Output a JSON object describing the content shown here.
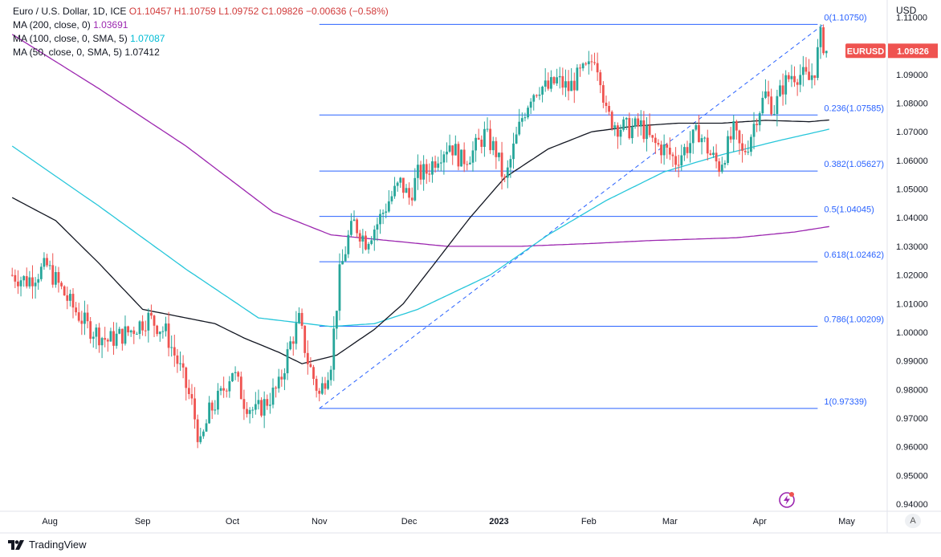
{
  "header": {
    "symbol": "Euro / U.S. Dollar, 1D, ICE",
    "ohlc_open": "O1.10457",
    "ohlc_high": "H1.10759",
    "ohlc_low": "L1.09752",
    "ohlc_close": "C1.09826",
    "change": "−0.00636 (−0.58%)",
    "ma200_label": "MA (200, close, 0)",
    "ma200_value": "1.03691",
    "ma100_label": "MA (100, close, 0, SMA, 5)",
    "ma100_value": "1.07087",
    "ma50_label": "MA (50, close, 0, SMA, 5)",
    "ma50_value": "1.07412",
    "currency": "USD"
  },
  "footer": {
    "brand": "TradingView",
    "auto_label": "A"
  },
  "colors": {
    "up": "#26a69a",
    "down": "#ef5350",
    "fib": "#2962ff",
    "ma200": "#9c27b0",
    "ma100": "#26c6da",
    "ma50": "#131722",
    "price_tag": "#ef5350"
  },
  "chart_data": {
    "type": "candlestick",
    "title": "Euro / U.S. Dollar, 1D, ICE",
    "ylabel": "USD",
    "ylim": [
      0.9375,
      1.116
    ],
    "y_ticks": [
      "1.11000",
      "1.09000",
      "1.08000",
      "1.07000",
      "1.06000",
      "1.05000",
      "1.04000",
      "1.03000",
      "1.02000",
      "1.01000",
      "1.00000",
      "0.99000",
      "0.98000",
      "0.97000",
      "0.96000",
      "0.95000",
      "0.94000"
    ],
    "x_labels": [
      "Aug",
      "Sep",
      "Oct",
      "Nov",
      "Dec",
      "2023",
      "Feb",
      "Mar",
      "Apr",
      "May"
    ],
    "x_label_days": [
      13,
      45,
      76,
      106,
      137,
      168,
      199,
      227,
      258,
      288
    ],
    "last_price": {
      "label": "EURUSD",
      "value": "1.09826",
      "price": 1.09826
    },
    "fib_retracement": {
      "start_day": 106,
      "end_day": 278,
      "levels": [
        {
          "label": "0(1.10750)",
          "price": 1.1075
        },
        {
          "label": "0.236(1.07585)",
          "price": 1.07585
        },
        {
          "label": "0.382(1.05627)",
          "price": 1.05627
        },
        {
          "label": "0.5(1.04045)",
          "price": 1.04045
        },
        {
          "label": "0.618(1.02462)",
          "price": 1.02462
        },
        {
          "label": "0.786(1.00209)",
          "price": 1.00209
        },
        {
          "label": "1(0.97339)",
          "price": 0.97339
        }
      ],
      "trendline": {
        "from_day": 106,
        "from_price": 0.97339,
        "to_day": 280,
        "to_price": 1.1075
      }
    },
    "anchors": [
      [
        0,
        1.02
      ],
      [
        5,
        1.018
      ],
      [
        12,
        1.023
      ],
      [
        20,
        1.01
      ],
      [
        26,
        1.002
      ],
      [
        33,
        0.997
      ],
      [
        40,
        1.0
      ],
      [
        47,
        1.005
      ],
      [
        53,
        1.0
      ],
      [
        58,
        0.987
      ],
      [
        62,
        0.975
      ],
      [
        65,
        0.96
      ],
      [
        68,
        0.972
      ],
      [
        72,
        0.978
      ],
      [
        76,
        0.987
      ],
      [
        80,
        0.976
      ],
      [
        84,
        0.972
      ],
      [
        88,
        0.976
      ],
      [
        92,
        0.981
      ],
      [
        96,
        0.996
      ],
      [
        99,
        1.004
      ],
      [
        102,
        0.99
      ],
      [
        106,
        0.978
      ],
      [
        110,
        0.99
      ],
      [
        113,
        1.02
      ],
      [
        116,
        1.033
      ],
      [
        118,
        1.038
      ],
      [
        122,
        1.032
      ],
      [
        126,
        1.038
      ],
      [
        130,
        1.046
      ],
      [
        134,
        1.052
      ],
      [
        137,
        1.047
      ],
      [
        140,
        1.055
      ],
      [
        143,
        1.056
      ],
      [
        147,
        1.062
      ],
      [
        151,
        1.066
      ],
      [
        155,
        1.06
      ],
      [
        159,
        1.063
      ],
      [
        163,
        1.069
      ],
      [
        167,
        1.063
      ],
      [
        170,
        1.052
      ],
      [
        173,
        1.064
      ],
      [
        176,
        1.075
      ],
      [
        179,
        1.083
      ],
      [
        182,
        1.086
      ],
      [
        185,
        1.085
      ],
      [
        188,
        1.088
      ],
      [
        192,
        1.085
      ],
      [
        196,
        1.09
      ],
      [
        199,
        1.092
      ],
      [
        201,
        1.097
      ],
      [
        203,
        1.09
      ],
      [
        205,
        1.076
      ],
      [
        209,
        1.072
      ],
      [
        213,
        1.071
      ],
      [
        217,
        1.072
      ],
      [
        221,
        1.066
      ],
      [
        225,
        1.064
      ],
      [
        229,
        1.06
      ],
      [
        233,
        1.065
      ],
      [
        237,
        1.07
      ],
      [
        241,
        1.062
      ],
      [
        244,
        1.058
      ],
      [
        247,
        1.065
      ],
      [
        249,
        1.07
      ],
      [
        252,
        1.062
      ],
      [
        254,
        1.066
      ],
      [
        257,
        1.076
      ],
      [
        260,
        1.083
      ],
      [
        263,
        1.078
      ],
      [
        266,
        1.086
      ],
      [
        269,
        1.09
      ],
      [
        272,
        1.09
      ],
      [
        275,
        1.088
      ],
      [
        277,
        1.092
      ],
      [
        279,
        1.103
      ],
      [
        281,
        1.0983
      ]
    ],
    "ma200": [
      [
        0,
        1.104
      ],
      [
        30,
        1.085
      ],
      [
        60,
        1.065
      ],
      [
        90,
        1.042
      ],
      [
        110,
        1.034
      ],
      [
        130,
        1.032
      ],
      [
        150,
        1.03
      ],
      [
        175,
        1.03
      ],
      [
        200,
        1.031
      ],
      [
        220,
        1.032
      ],
      [
        250,
        1.033
      ],
      [
        270,
        1.035
      ],
      [
        282,
        1.0369
      ]
    ],
    "ma100": [
      [
        0,
        1.065
      ],
      [
        30,
        1.044
      ],
      [
        60,
        1.022
      ],
      [
        85,
        1.005
      ],
      [
        110,
        1.002
      ],
      [
        125,
        1.003
      ],
      [
        140,
        1.008
      ],
      [
        165,
        1.02
      ],
      [
        185,
        1.034
      ],
      [
        205,
        1.046
      ],
      [
        225,
        1.056
      ],
      [
        245,
        1.062
      ],
      [
        265,
        1.067
      ],
      [
        282,
        1.0709
      ]
    ],
    "ma50": [
      [
        0,
        1.047
      ],
      [
        15,
        1.039
      ],
      [
        30,
        1.024
      ],
      [
        45,
        1.008
      ],
      [
        60,
        1.005
      ],
      [
        70,
        1.003
      ],
      [
        80,
        0.998
      ],
      [
        92,
        0.993
      ],
      [
        100,
        0.989
      ],
      [
        112,
        0.992
      ],
      [
        125,
        1.001
      ],
      [
        135,
        1.01
      ],
      [
        145,
        1.023
      ],
      [
        158,
        1.04
      ],
      [
        170,
        1.054
      ],
      [
        185,
        1.064
      ],
      [
        200,
        1.07
      ],
      [
        215,
        1.072
      ],
      [
        230,
        1.073
      ],
      [
        245,
        1.073
      ],
      [
        260,
        1.074
      ],
      [
        275,
        1.0735
      ],
      [
        282,
        1.0741
      ]
    ]
  }
}
